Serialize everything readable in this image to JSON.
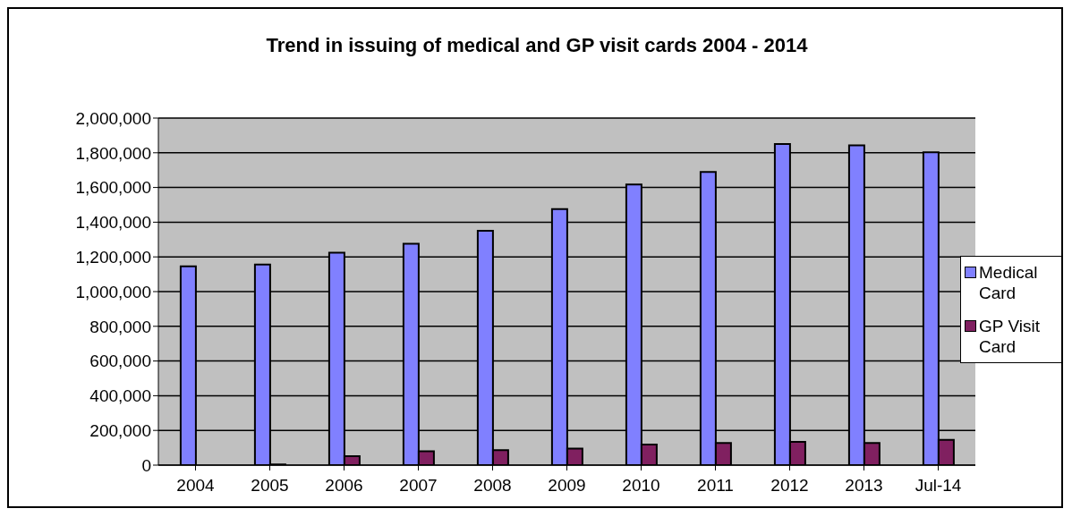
{
  "chart_data": {
    "type": "bar",
    "title": "Trend in issuing of medical and GP visit cards 2004 - 2014",
    "categories": [
      "2004",
      "2005",
      "2006",
      "2007",
      "2008",
      "2009",
      "2010",
      "2011",
      "2012",
      "2013",
      "Jul-14"
    ],
    "series": [
      {
        "name": "Medical Card",
        "color": "#8080ff",
        "values": [
          1146000,
          1156000,
          1224000,
          1276000,
          1350000,
          1476000,
          1617000,
          1690000,
          1850000,
          1843000,
          1803000
        ]
      },
      {
        "name": "GP Visit Card",
        "color": "#802060",
        "values": [
          0,
          4000,
          52000,
          80000,
          86000,
          96000,
          118000,
          127000,
          134000,
          127000,
          145000
        ]
      }
    ],
    "ylim": [
      0,
      2000000
    ],
    "yticks": [
      0,
      {
        "value": 200000,
        "label": "200,000"
      },
      {
        "value": 400000,
        "label": "400,000"
      },
      {
        "value": 600000,
        "label": "600,000"
      },
      {
        "value": 800000,
        "label": "800,000"
      },
      {
        "value": 1000000,
        "label": "1,000,000"
      },
      {
        "value": 1200000,
        "label": "1,200,000"
      },
      {
        "value": 1400000,
        "label": "1,400,000"
      },
      {
        "value": 1600000,
        "label": "1,600,000"
      },
      {
        "value": 1800000,
        "label": "1,800,000"
      },
      {
        "value": 2000000,
        "label": "2,000,000"
      }
    ],
    "grid": "y",
    "legend": "right"
  }
}
